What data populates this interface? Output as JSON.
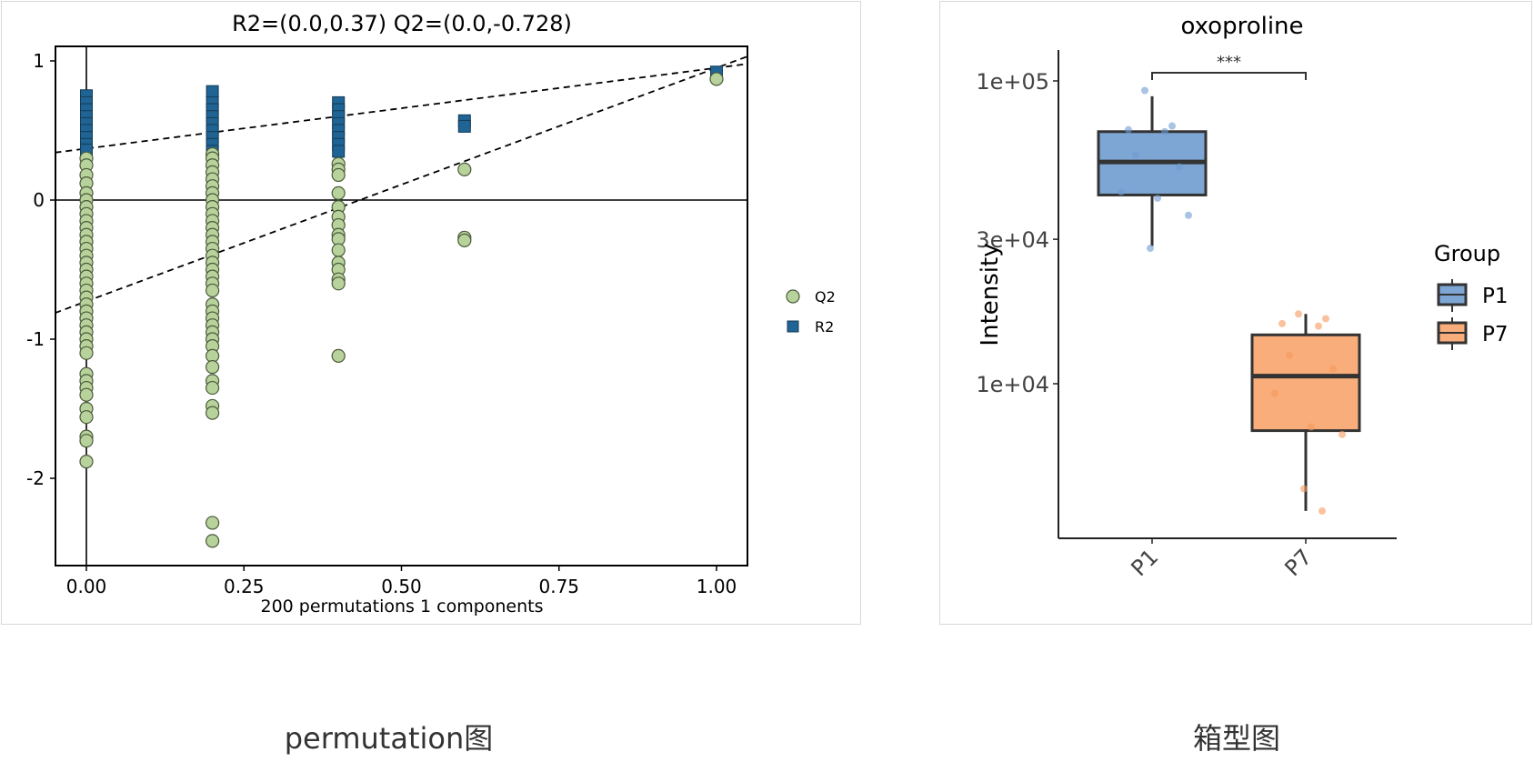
{
  "captions": {
    "left": "permutation图",
    "right": "箱型图"
  },
  "chart_data": [
    {
      "type": "scatter",
      "title": "R2=(0.0,0.37)   Q2=(0.0,-0.728)",
      "xlabel": "200 permutations 1 components",
      "ylabel": "",
      "xlim": [
        -0.1,
        2.1
      ],
      "ylim": [
        -2.62,
        1.1
      ],
      "x_ticks": [
        "0.00",
        "0.25",
        "0.50",
        "0.75",
        "1.00"
      ],
      "y_ticks": [
        "1",
        "0",
        "-1",
        "-2"
      ],
      "grid": false,
      "legend_position": "right",
      "series": [
        {
          "name": "Q2",
          "marker": "circle",
          "color": "#b8d29c",
          "edge_color": "#4a5a3a",
          "points": [
            [
              0.0,
              0.3
            ],
            [
              0.0,
              0.25
            ],
            [
              0.0,
              0.18
            ],
            [
              0.0,
              0.12
            ],
            [
              0.0,
              0.05
            ],
            [
              0.0,
              0.0
            ],
            [
              0.0,
              -0.05
            ],
            [
              0.0,
              -0.1
            ],
            [
              0.0,
              -0.15
            ],
            [
              0.0,
              -0.2
            ],
            [
              0.0,
              -0.25
            ],
            [
              0.0,
              -0.3
            ],
            [
              0.0,
              -0.35
            ],
            [
              0.0,
              -0.4
            ],
            [
              0.0,
              -0.45
            ],
            [
              0.0,
              -0.5
            ],
            [
              0.0,
              -0.55
            ],
            [
              0.0,
              -0.6
            ],
            [
              0.0,
              -0.65
            ],
            [
              0.0,
              -0.7
            ],
            [
              0.0,
              -0.75
            ],
            [
              0.0,
              -0.8
            ],
            [
              0.0,
              -0.85
            ],
            [
              0.0,
              -0.9
            ],
            [
              0.0,
              -0.95
            ],
            [
              0.0,
              -1.0
            ],
            [
              0.0,
              -1.05
            ],
            [
              0.0,
              -1.1
            ],
            [
              0.0,
              -1.25
            ],
            [
              0.0,
              -1.3
            ],
            [
              0.0,
              -1.35
            ],
            [
              0.0,
              -1.4
            ],
            [
              0.0,
              -1.5
            ],
            [
              0.0,
              -1.56
            ],
            [
              0.0,
              -1.7
            ],
            [
              0.0,
              -1.73
            ],
            [
              0.0,
              -1.88
            ],
            [
              0.2,
              0.33
            ],
            [
              0.2,
              0.3
            ],
            [
              0.2,
              0.25
            ],
            [
              0.2,
              0.2
            ],
            [
              0.2,
              0.15
            ],
            [
              0.2,
              0.1
            ],
            [
              0.2,
              0.05
            ],
            [
              0.2,
              0.0
            ],
            [
              0.2,
              -0.05
            ],
            [
              0.2,
              -0.1
            ],
            [
              0.2,
              -0.15
            ],
            [
              0.2,
              -0.2
            ],
            [
              0.2,
              -0.25
            ],
            [
              0.2,
              -0.3
            ],
            [
              0.2,
              -0.35
            ],
            [
              0.2,
              -0.4
            ],
            [
              0.2,
              -0.45
            ],
            [
              0.2,
              -0.5
            ],
            [
              0.2,
              -0.55
            ],
            [
              0.2,
              -0.6
            ],
            [
              0.2,
              -0.65
            ],
            [
              0.2,
              -0.75
            ],
            [
              0.2,
              -0.8
            ],
            [
              0.2,
              -0.85
            ],
            [
              0.2,
              -0.9
            ],
            [
              0.2,
              -0.95
            ],
            [
              0.2,
              -1.0
            ],
            [
              0.2,
              -1.05
            ],
            [
              0.2,
              -1.12
            ],
            [
              0.2,
              -1.2
            ],
            [
              0.2,
              -1.3
            ],
            [
              0.2,
              -1.35
            ],
            [
              0.2,
              -1.48
            ],
            [
              0.2,
              -1.53
            ],
            [
              0.2,
              -2.32
            ],
            [
              0.2,
              -2.45
            ],
            [
              0.4,
              0.26
            ],
            [
              0.4,
              0.22
            ],
            [
              0.4,
              0.18
            ],
            [
              0.4,
              0.05
            ],
            [
              0.4,
              -0.05
            ],
            [
              0.4,
              -0.12
            ],
            [
              0.4,
              -0.18
            ],
            [
              0.4,
              -0.25
            ],
            [
              0.4,
              -0.28
            ],
            [
              0.4,
              -0.36
            ],
            [
              0.4,
              -0.45
            ],
            [
              0.4,
              -0.5
            ],
            [
              0.4,
              -0.57
            ],
            [
              0.4,
              -0.6
            ],
            [
              0.4,
              -1.12
            ],
            [
              0.6,
              0.22
            ],
            [
              0.6,
              -0.27
            ],
            [
              0.6,
              -0.29
            ],
            [
              1.0,
              0.87
            ]
          ]
        },
        {
          "name": "R2",
          "marker": "square",
          "color": "#1f6494",
          "edge_color": "#143a55",
          "points": [
            [
              0.0,
              0.75
            ],
            [
              0.0,
              0.7
            ],
            [
              0.0,
              0.65
            ],
            [
              0.0,
              0.6
            ],
            [
              0.0,
              0.55
            ],
            [
              0.0,
              0.5
            ],
            [
              0.0,
              0.45
            ],
            [
              0.0,
              0.4
            ],
            [
              0.0,
              0.36
            ],
            [
              0.2,
              0.78
            ],
            [
              0.2,
              0.7
            ],
            [
              0.2,
              0.65
            ],
            [
              0.2,
              0.6
            ],
            [
              0.2,
              0.55
            ],
            [
              0.2,
              0.5
            ],
            [
              0.2,
              0.45
            ],
            [
              0.2,
              0.4
            ],
            [
              0.2,
              0.35
            ],
            [
              0.4,
              0.7
            ],
            [
              0.4,
              0.65
            ],
            [
              0.4,
              0.6
            ],
            [
              0.4,
              0.55
            ],
            [
              0.4,
              0.5
            ],
            [
              0.4,
              0.45
            ],
            [
              0.4,
              0.4
            ],
            [
              0.4,
              0.35
            ],
            [
              0.6,
              0.57
            ],
            [
              0.6,
              0.53
            ],
            [
              1.0,
              0.92
            ]
          ]
        }
      ],
      "reference_lines": [
        {
          "name": "R2 regression",
          "intercept": 0.37,
          "style": "dashed"
        },
        {
          "name": "Q2 regression",
          "intercept": -0.728,
          "style": "dashed"
        }
      ]
    },
    {
      "type": "box",
      "title": "oxoproline",
      "xlabel": "",
      "ylabel": "Intensity",
      "y_scale": "log",
      "y_ticks": [
        "1e+05",
        "3e+04",
        "1e+04"
      ],
      "categories": [
        "P1",
        "P7"
      ],
      "legend_title": "Group",
      "legend_position": "right",
      "significance": {
        "label": "***",
        "between": [
          "P1",
          "P7"
        ]
      },
      "series": [
        {
          "name": "P1",
          "color": "#7ea6d4",
          "whisker_low": 28500,
          "q1": 42000,
          "median": 54000,
          "q3": 68000,
          "whisker_high": 89000,
          "points": [
            93000,
            71000,
            69000,
            68000,
            57000,
            52000,
            43000,
            41000,
            36000,
            28000
          ]
        },
        {
          "name": "P7",
          "color": "#f8ad7b",
          "whisker_low": 3800,
          "q1": 7000,
          "median": 10600,
          "q3": 14500,
          "whisker_high": 17000,
          "points": [
            17000,
            16400,
            15800,
            15500,
            12400,
            11200,
            9300,
            7200,
            6800,
            4500,
            3800
          ]
        }
      ]
    }
  ]
}
